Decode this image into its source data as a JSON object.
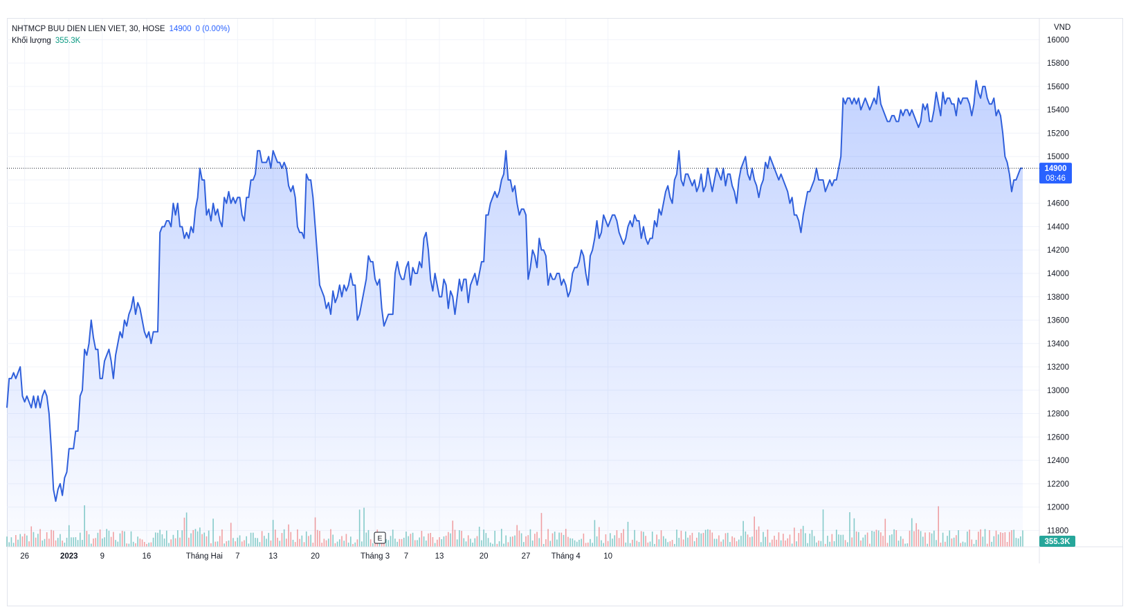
{
  "legend": {
    "symbol": "NHTMCP BUU DIEN LIEN VIET, 30, HOSE",
    "last": "14900",
    "change": "0 (0.00%)",
    "volume_label": "Khối lượng",
    "volume_value": "355.3K"
  },
  "price_axis": {
    "currency": "VND",
    "last_price_label": "14900",
    "countdown_label": "08:46",
    "volume_tag": "355.3K"
  },
  "event_marker": "E",
  "colors": {
    "line": "#2f5fdb",
    "area": "#2962ff",
    "last_tag": "#2962ff",
    "volume_up": "#26a69a",
    "volume_down": "#ef5350",
    "volume_tag": "#26a69a",
    "grid": "#f0f3fa"
  },
  "chart_data": {
    "type": "area",
    "title": "NHTMCP BUU DIEN LIEN VIET, 30, HOSE",
    "ylabel": "VND",
    "ylim": [
      11660,
      16180
    ],
    "y_ticks": [
      11800,
      12000,
      12200,
      12400,
      12600,
      12800,
      13000,
      13200,
      13400,
      13600,
      13800,
      14000,
      14200,
      14400,
      14600,
      14800,
      15000,
      15200,
      15400,
      15600,
      15800,
      16000
    ],
    "x_ticks": [
      {
        "label": "26",
        "i": 8,
        "bold": false
      },
      {
        "label": "2023",
        "i": 28,
        "bold": true
      },
      {
        "label": "9",
        "i": 43,
        "bold": false
      },
      {
        "label": "16",
        "i": 63,
        "bold": false
      },
      {
        "label": "Tháng Hai",
        "i": 89,
        "bold": false
      },
      {
        "label": "7",
        "i": 104,
        "bold": false
      },
      {
        "label": "13",
        "i": 120,
        "bold": false
      },
      {
        "label": "20",
        "i": 139,
        "bold": false
      },
      {
        "label": "Tháng 3",
        "i": 166,
        "bold": false
      },
      {
        "label": "7",
        "i": 180,
        "bold": false
      },
      {
        "label": "13",
        "i": 195,
        "bold": false
      },
      {
        "label": "20",
        "i": 215,
        "bold": false
      },
      {
        "label": "27",
        "i": 234,
        "bold": false
      },
      {
        "label": "Tháng 4",
        "i": 252,
        "bold": false
      },
      {
        "label": "10",
        "i": 271,
        "bold": false
      }
    ],
    "last_price": 14900,
    "series": [
      {
        "values": [
          12850,
          13100,
          13100,
          13150,
          13100,
          13150,
          13200,
          12950,
          12900,
          12950,
          12900,
          12850,
          12950,
          12850,
          12950,
          12850,
          12950,
          13000,
          12950,
          12800,
          12500,
          12150,
          12050,
          12150,
          12200,
          12100,
          12250,
          12300,
          12500,
          12500,
          12500,
          12650,
          12650,
          12950,
          13000,
          13350,
          13300,
          13400,
          13600,
          13450,
          13350,
          13350,
          13100,
          13100,
          13250,
          13300,
          13350,
          13250,
          13100,
          13300,
          13400,
          13500,
          13450,
          13600,
          13550,
          13650,
          13700,
          13800,
          13650,
          13750,
          13700,
          13600,
          13500,
          13450,
          13500,
          13400,
          13500,
          13500,
          13500,
          14350,
          14400,
          14400,
          14450,
          14450,
          14400,
          14600,
          14500,
          14600,
          14400,
          14400,
          14300,
          14350,
          14300,
          14400,
          14350,
          14550,
          14650,
          14900,
          14800,
          14800,
          14500,
          14550,
          14450,
          14600,
          14500,
          14550,
          14450,
          14400,
          14650,
          14600,
          14700,
          14600,
          14650,
          14600,
          14650,
          14650,
          14500,
          14450,
          14650,
          14650,
          14800,
          14800,
          14850,
          15050,
          15050,
          14950,
          14950,
          14950,
          15000,
          14900,
          15050,
          15000,
          14950,
          14950,
          14900,
          14950,
          14900,
          14750,
          14700,
          14750,
          14650,
          14400,
          14350,
          14350,
          14300,
          14850,
          14800,
          14800,
          14650,
          14400,
          14150,
          13900,
          13850,
          13800,
          13700,
          13750,
          13650,
          13850,
          13750,
          13800,
          13900,
          13800,
          13900,
          13850,
          13900,
          14000,
          13900,
          13900,
          13600,
          13650,
          13750,
          13850,
          13950,
          14150,
          14100,
          14100,
          13950,
          13900,
          13950,
          13700,
          13550,
          13600,
          13650,
          13650,
          13650,
          14000,
          14100,
          14000,
          13950,
          13950,
          14050,
          14100,
          13900,
          14050,
          14000,
          14000,
          14100,
          14050,
          14300,
          14350,
          14200,
          13950,
          13850,
          14000,
          13900,
          13800,
          13800,
          13950,
          13900,
          13700,
          13850,
          13800,
          13650,
          13800,
          13950,
          13850,
          13950,
          13950,
          13750,
          13900,
          13950,
          14000,
          13900,
          14000,
          14100,
          14100,
          14500,
          14500,
          14600,
          14650,
          14700,
          14650,
          14700,
          14800,
          14850,
          15050,
          14800,
          14800,
          14700,
          14750,
          14600,
          14500,
          14550,
          14550,
          14500,
          13950,
          14050,
          14200,
          14150,
          14050,
          14300,
          14200,
          14200,
          14150,
          13900,
          14000,
          13950,
          13950,
          14000,
          14000,
          13900,
          13950,
          13900,
          13800,
          13850,
          14000,
          14050,
          14050,
          14100,
          14200,
          14150,
          14000,
          13900,
          14150,
          14200,
          14300,
          14450,
          14300,
          14350,
          14500,
          14450,
          14400,
          14450,
          14500,
          14500,
          14450,
          14350,
          14300,
          14250,
          14300,
          14400,
          14450,
          14400,
          14500,
          14450,
          14450,
          14300,
          14400,
          14300,
          14250,
          14300,
          14300,
          14450,
          14400,
          14550,
          14500,
          14600,
          14700,
          14750,
          14650,
          14600,
          14800,
          14850,
          15050,
          14800,
          14750,
          14850,
          14850,
          14800,
          14750,
          14800,
          14700,
          14750,
          14850,
          14700,
          14750,
          14900,
          14800,
          14700,
          14800,
          14900,
          14850,
          14800,
          14900,
          14750,
          14850,
          14850,
          14750,
          14700,
          14600,
          14800,
          14900,
          14950,
          15000,
          14850,
          14800,
          14900,
          14800,
          14750,
          14650,
          14750,
          14800,
          14950,
          14900,
          15000,
          14950,
          14900,
          14850,
          14800,
          14850,
          14800,
          14750,
          14700,
          14600,
          14650,
          14500,
          14500,
          14450,
          14350,
          14500,
          14600,
          14700,
          14700,
          14750,
          14800,
          14900,
          14800,
          14800,
          14800,
          14700,
          14750,
          14800,
          14750,
          14800,
          14800,
          14900,
          15000,
          15500,
          15450,
          15500,
          15500,
          15450,
          15500,
          15450,
          15500,
          15400,
          15450,
          15500,
          15450,
          15400,
          15450,
          15500,
          15450,
          15600,
          15450,
          15400,
          15350,
          15300,
          15300,
          15350,
          15350,
          15300,
          15300,
          15400,
          15350,
          15400,
          15400,
          15350,
          15400,
          15350,
          15300,
          15250,
          15300,
          15450,
          15400,
          15450,
          15300,
          15300,
          15400,
          15550,
          15450,
          15350,
          15550,
          15450,
          15500,
          15500,
          15450,
          15450,
          15350,
          15500,
          15450,
          15500,
          15500,
          15500,
          15450,
          15350,
          15450,
          15650,
          15550,
          15500,
          15600,
          15600,
          15500,
          15450,
          15450,
          15500,
          15350,
          15400,
          15350,
          15200,
          15000,
          14950,
          14850,
          14700,
          14800,
          14800,
          14850,
          14900,
          14900
        ]
      }
    ],
    "volume_label": "Khối lượng"
  }
}
